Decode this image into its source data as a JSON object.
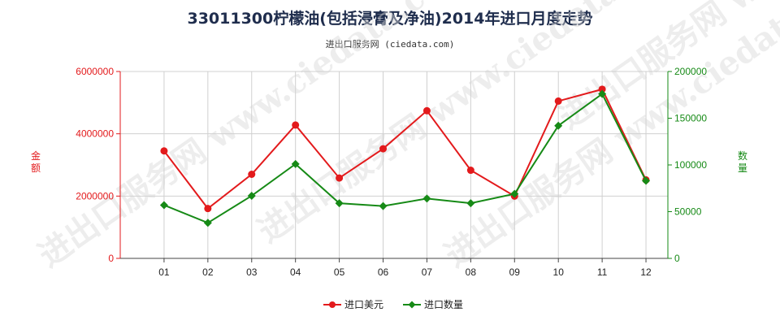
{
  "title": "33011300柠檬油(包括浸膏及净油)2014年进口月度走势",
  "subtitle": "进出口服务网 (ciedata.com)",
  "watermark": "进出口服务网 www.ciedata.com",
  "colors": {
    "amount": "#e31a1c",
    "quantity": "#168a16",
    "grid": "#d0d0d0"
  },
  "chart_data": {
    "type": "line",
    "categories": [
      "01",
      "02",
      "03",
      "04",
      "05",
      "06",
      "07",
      "08",
      "09",
      "10",
      "11",
      "12"
    ],
    "y_left": {
      "label": "金额",
      "ylim": [
        0,
        6000000
      ],
      "ticks": [
        "0",
        "2000000",
        "4000000",
        "6000000"
      ],
      "color": "#e31a1c"
    },
    "y_right": {
      "label": "数量",
      "ylim": [
        0,
        200000
      ],
      "ticks": [
        "0",
        "50000",
        "100000",
        "150000",
        "200000"
      ],
      "color": "#168a16"
    },
    "series": [
      {
        "name": "进口美元",
        "axis": "left",
        "marker": "circle",
        "color": "#e31a1c",
        "values": [
          3450000,
          1600000,
          2700000,
          4280000,
          2580000,
          3520000,
          4740000,
          2830000,
          2000000,
          5050000,
          5430000,
          2520000
        ]
      },
      {
        "name": "进口数量",
        "axis": "right",
        "marker": "diamond",
        "color": "#168a16",
        "values": [
          57000,
          38000,
          67000,
          101000,
          59000,
          56000,
          64000,
          59000,
          69000,
          142000,
          176000,
          83000
        ]
      }
    ],
    "grid": true,
    "legend": "bottom"
  }
}
